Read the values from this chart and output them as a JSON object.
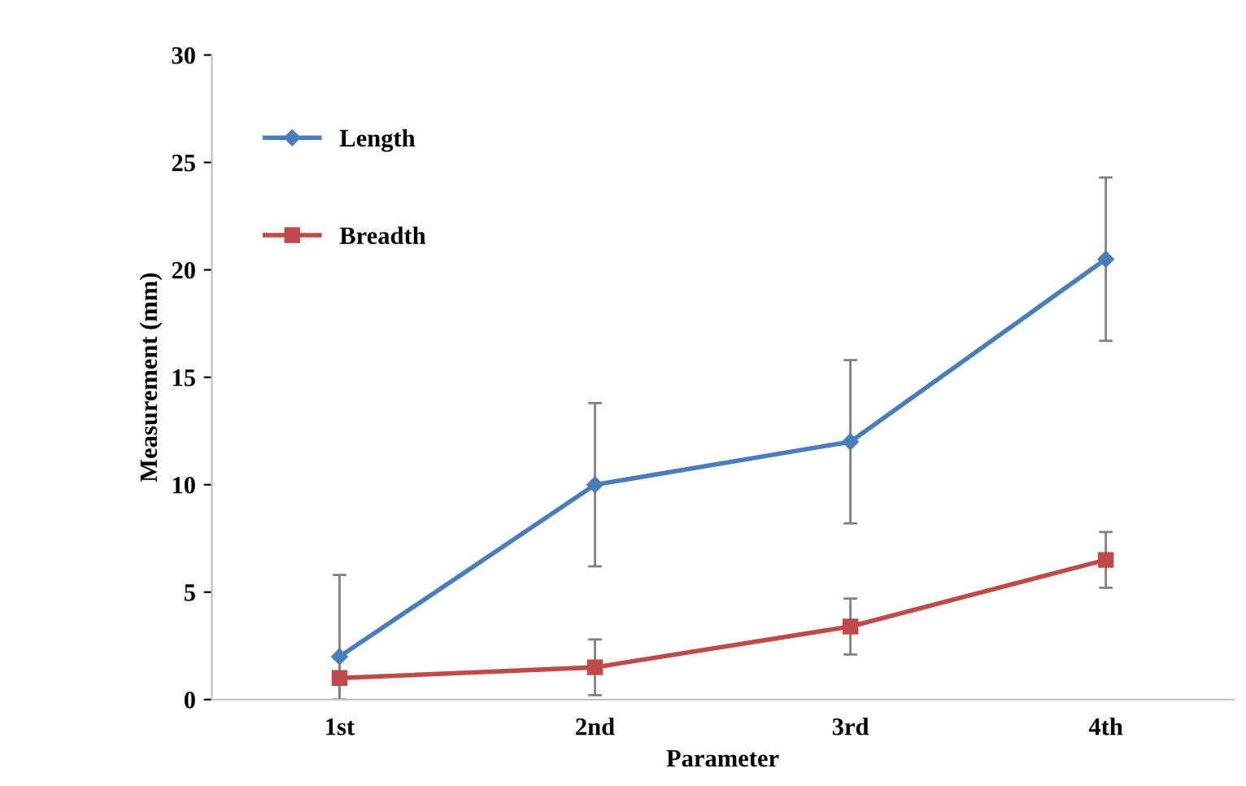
{
  "chart_data": {
    "type": "line",
    "xlabel": "Parameter",
    "ylabel": "Measurement (mm)",
    "categories": [
      "1st",
      "2nd",
      "3rd",
      "4th"
    ],
    "series": [
      {
        "name": "Length",
        "color": "#4a7ebb",
        "marker": "diamond",
        "values": [
          2,
          10,
          12,
          20.5
        ],
        "errors": [
          3.8,
          3.8,
          3.8,
          3.8
        ]
      },
      {
        "name": "Breadth",
        "color": "#be4b48",
        "marker": "square",
        "values": [
          1,
          1.5,
          3.4,
          6.5
        ],
        "errors": [
          1,
          1.3,
          1.3,
          1.3
        ]
      }
    ],
    "ylim": [
      0,
      30
    ],
    "yticks": [
      0,
      5,
      10,
      15,
      20,
      25,
      30
    ],
    "grid": false,
    "legend": "top left"
  }
}
